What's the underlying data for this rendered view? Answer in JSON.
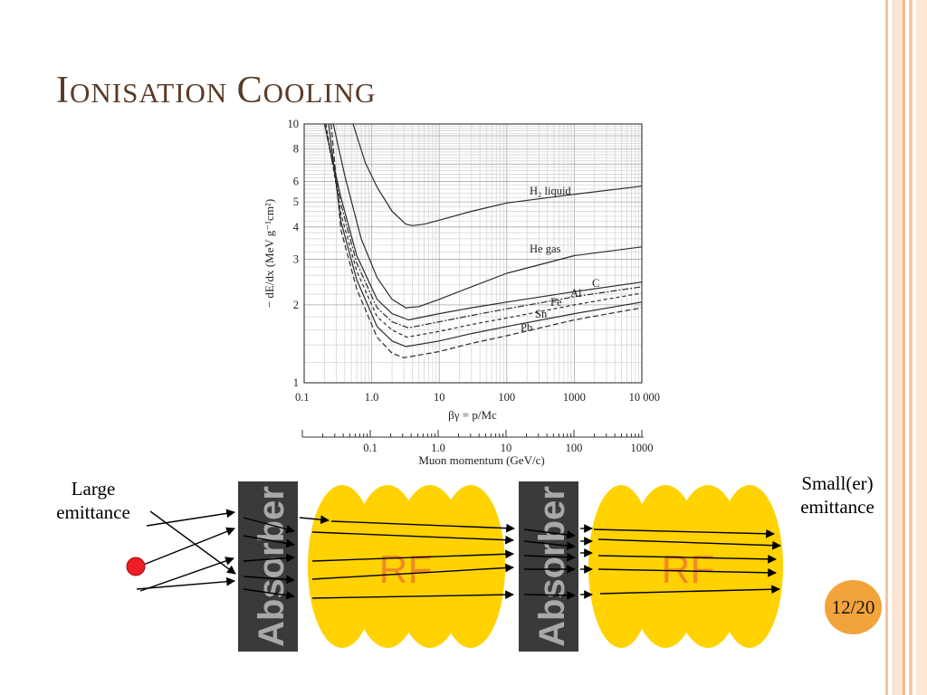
{
  "slide": {
    "title_initial_1": "I",
    "title_rest_1": "ONISATION",
    "title_initial_2": "C",
    "title_rest_2": "OOLING",
    "page_number": "12/20"
  },
  "figure": {
    "y_axis_label": "− dE/dx (MeV g⁻¹cm²)",
    "x_axis_label": "βγ = p/Mc",
    "x2_axis_label": "Muon momentum (GeV/c)",
    "y_ticks": [
      "1",
      "2",
      "3",
      "4",
      "5",
      "6",
      "8",
      "10"
    ],
    "x_ticks": [
      "0.1",
      "1.0",
      "10",
      "100",
      "1000",
      "10 000"
    ],
    "x2_ticks": [
      "0.1",
      "1.0",
      "10",
      "100",
      "1000"
    ],
    "curve_labels": {
      "h2": "H₂ liquid",
      "he": "He gas",
      "c": "C",
      "al": "Al",
      "fe": "Fe",
      "sn": "Sn",
      "pb": "Pb"
    }
  },
  "chart_data": {
    "type": "line",
    "x_scale": "log",
    "y_scale": "log",
    "xlim": [
      0.1,
      10000
    ],
    "ylim": [
      1,
      10
    ],
    "xlabel": "βγ = p/Mc",
    "ylabel": "− dE/dx (MeV g⁻¹cm²)",
    "grid": true,
    "series": [
      {
        "name": "H₂ liquid",
        "x": [
          0.53,
          0.8,
          1.2,
          2,
          3.2,
          4,
          6,
          10,
          30,
          100,
          1000,
          10000
        ],
        "y": [
          10,
          7.1,
          5.7,
          4.6,
          4.1,
          4.05,
          4.1,
          4.25,
          4.6,
          4.95,
          5.35,
          5.75
        ]
      },
      {
        "name": "He gas",
        "x": [
          0.27,
          0.4,
          0.7,
          1.2,
          2,
          3.2,
          5,
          10,
          30,
          100,
          1000,
          10000
        ],
        "y": [
          10,
          6.3,
          3.6,
          2.55,
          2.1,
          1.95,
          1.97,
          2.1,
          2.35,
          2.65,
          3.1,
          3.35
        ]
      },
      {
        "name": "C",
        "x": [
          0.2,
          0.35,
          0.6,
          1.2,
          2,
          3.5,
          10,
          30,
          100,
          1000,
          10000
        ],
        "y": [
          10,
          5.2,
          3.1,
          2.1,
          1.85,
          1.75,
          1.85,
          1.95,
          2.05,
          2.25,
          2.45
        ]
      },
      {
        "name": "Al",
        "x": [
          0.2,
          0.35,
          0.6,
          1.2,
          2,
          3.5,
          10,
          30,
          100,
          1000,
          10000
        ],
        "y": [
          10,
          4.9,
          2.9,
          1.95,
          1.72,
          1.63,
          1.72,
          1.82,
          1.93,
          2.15,
          2.35
        ]
      },
      {
        "name": "Fe",
        "x": [
          0.21,
          0.35,
          0.6,
          1.2,
          2,
          3.3,
          10,
          30,
          100,
          1000,
          10000
        ],
        "y": [
          10,
          4.5,
          2.7,
          1.8,
          1.6,
          1.5,
          1.58,
          1.68,
          1.78,
          2.0,
          2.22
        ]
      },
      {
        "name": "Sn",
        "x": [
          0.23,
          0.35,
          0.6,
          1.2,
          2,
          3.2,
          10,
          30,
          100,
          1000,
          10000
        ],
        "y": [
          10,
          4.2,
          2.5,
          1.65,
          1.45,
          1.38,
          1.45,
          1.55,
          1.65,
          1.85,
          2.05
        ]
      },
      {
        "name": "Pb",
        "x": [
          0.25,
          0.35,
          0.6,
          1.2,
          2,
          3.0,
          10,
          30,
          100,
          1000,
          10000
        ],
        "y": [
          10,
          3.9,
          2.3,
          1.5,
          1.3,
          1.25,
          1.32,
          1.42,
          1.52,
          1.75,
          1.95
        ]
      }
    ]
  },
  "diagram": {
    "left_label_line1": "Large",
    "left_label_line2": "emittance",
    "right_label_line1": "Small(er)",
    "right_label_line2": "emittance",
    "absorber_label": "Absorber",
    "rf_label": "RF"
  }
}
